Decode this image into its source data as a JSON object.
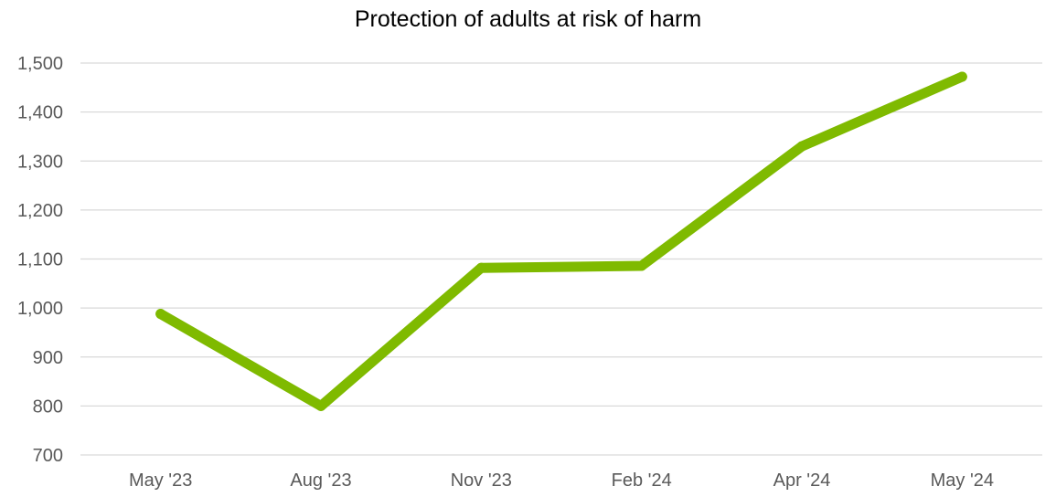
{
  "chart_data": {
    "type": "line",
    "title": "Protection of adults at risk of harm",
    "xlabel": "",
    "ylabel": "",
    "categories": [
      "May '23",
      "Aug '23",
      "Nov '23",
      "Feb '24",
      "Apr '24",
      "May '24"
    ],
    "series": [
      {
        "values": [
          988,
          800,
          1082,
          1086,
          1330,
          1472
        ]
      }
    ],
    "ylim": [
      700,
      1500
    ],
    "yticks": [
      700,
      800,
      900,
      1000,
      1100,
      1200,
      1300,
      1400,
      1500
    ],
    "ytick_labels": [
      "700",
      "800",
      "900",
      "1,000",
      "1,100",
      "1,200",
      "1,300",
      "1,400",
      "1,500"
    ],
    "grid": "horizontal",
    "legend": "none",
    "colors": {
      "line": "#7fba00",
      "grid": "#d9d9d9",
      "axis_text": "#595959",
      "title": "#000000"
    }
  }
}
